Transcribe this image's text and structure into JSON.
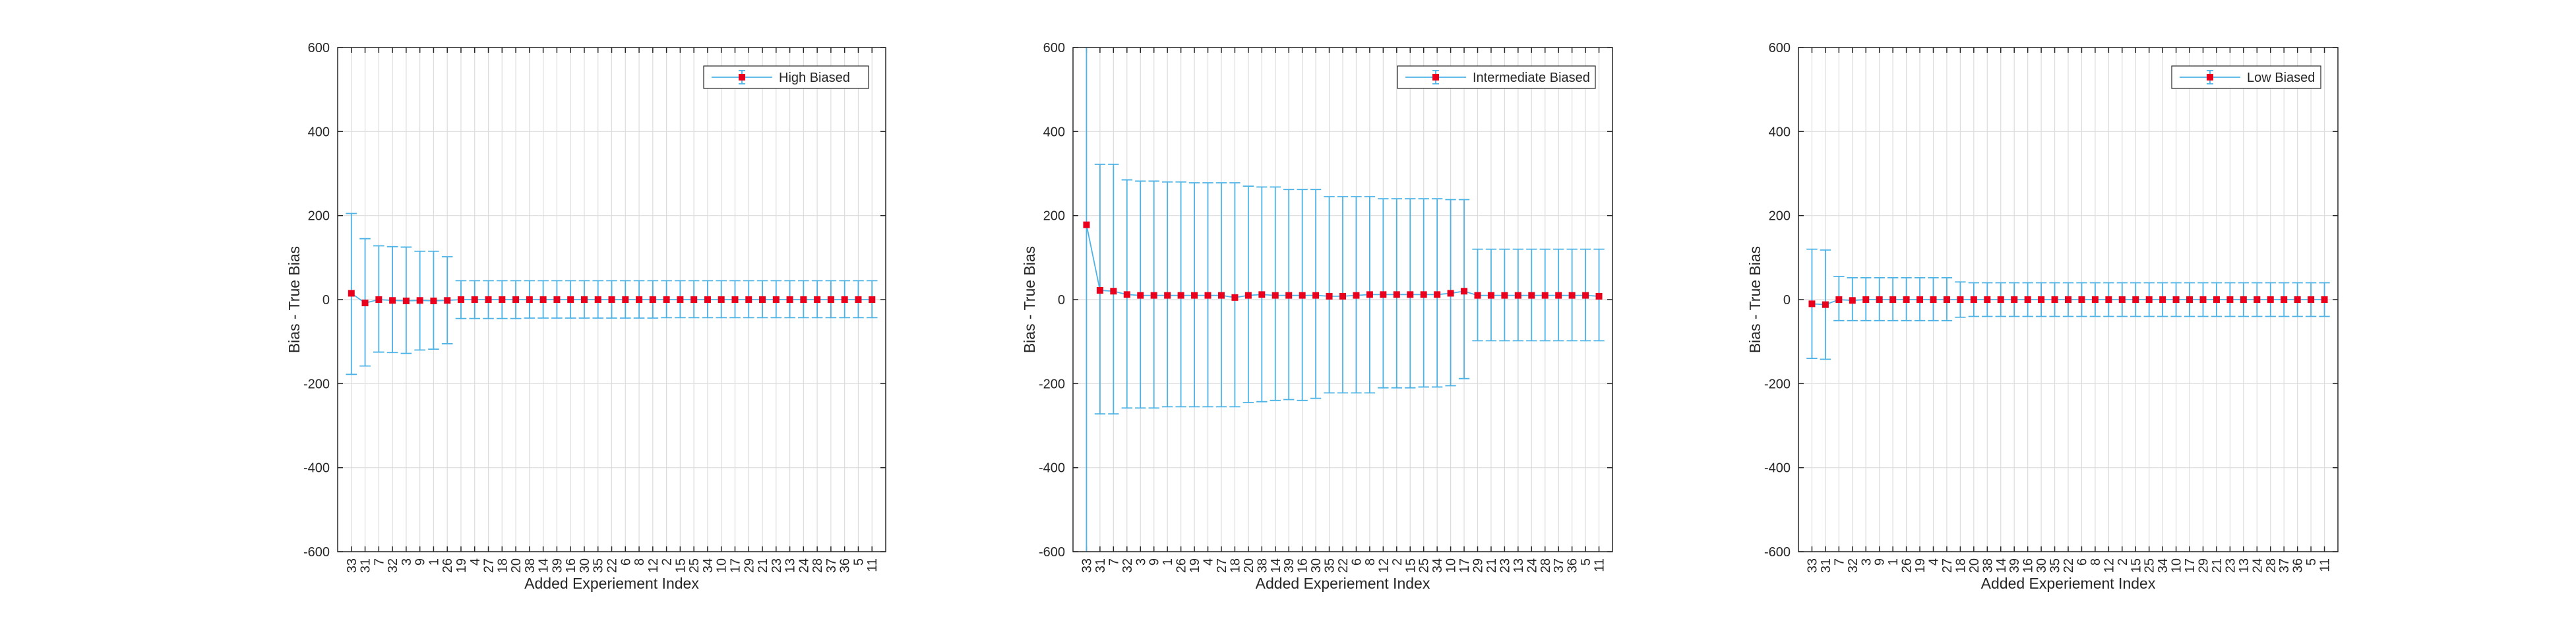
{
  "colors": {
    "errorbar": "#4db3e6",
    "marker": "#e8001c",
    "grid": "#dcdcdc",
    "axis": "#262626",
    "background": "#ffffff"
  },
  "chart_data": [
    {
      "type": "errorbar",
      "xlabel": "Added Experiement Index",
      "ylabel": "Bias - True Bias",
      "ylim": [
        -600,
        600
      ],
      "yticks": [
        -600,
        -400,
        -200,
        0,
        200,
        400,
        600
      ],
      "grid": true,
      "legend_position": "top-right",
      "categories": [
        "33",
        "31",
        "7",
        "32",
        "3",
        "9",
        "1",
        "26",
        "19",
        "4",
        "27",
        "18",
        "20",
        "38",
        "14",
        "39",
        "16",
        "30",
        "35",
        "22",
        "6",
        "8",
        "12",
        "2",
        "15",
        "25",
        "34",
        "10",
        "17",
        "29",
        "21",
        "23",
        "13",
        "24",
        "28",
        "37",
        "36",
        "5",
        "11"
      ],
      "series": [
        {
          "name": "High Biased",
          "values": [
            15,
            -8,
            0,
            -2,
            -3,
            -2,
            -3,
            -2,
            0,
            0,
            0,
            0,
            0,
            0,
            0,
            0,
            0,
            0,
            0,
            0,
            0,
            0,
            0,
            0,
            0,
            0,
            0,
            0,
            0,
            0,
            0,
            0,
            0,
            0,
            0,
            0,
            0,
            0,
            0
          ],
          "lower": [
            -178,
            -158,
            -125,
            -126,
            -128,
            -120,
            -118,
            -105,
            -45,
            -45,
            -45,
            -45,
            -45,
            -44,
            -44,
            -44,
            -44,
            -44,
            -44,
            -44,
            -44,
            -44,
            -44,
            -43,
            -43,
            -43,
            -43,
            -43,
            -43,
            -43,
            -43,
            -43,
            -43,
            -43,
            -43,
            -43,
            -43,
            -43,
            -43
          ],
          "upper": [
            205,
            145,
            128,
            126,
            125,
            115,
            115,
            102,
            45,
            45,
            45,
            45,
            45,
            45,
            45,
            45,
            45,
            45,
            45,
            45,
            45,
            45,
            45,
            45,
            45,
            45,
            45,
            45,
            45,
            45,
            45,
            45,
            45,
            45,
            45,
            45,
            45,
            45,
            45
          ]
        }
      ]
    },
    {
      "type": "errorbar",
      "xlabel": "Added Experiement Index",
      "ylabel": "Bias - True Bias",
      "ylim": [
        -600,
        600
      ],
      "yticks": [
        -600,
        -400,
        -200,
        0,
        200,
        400,
        600
      ],
      "grid": true,
      "legend_position": "top-right",
      "categories": [
        "33",
        "31",
        "7",
        "32",
        "3",
        "9",
        "1",
        "26",
        "19",
        "4",
        "27",
        "18",
        "20",
        "38",
        "14",
        "39",
        "16",
        "30",
        "35",
        "22",
        "6",
        "8",
        "12",
        "2",
        "15",
        "25",
        "34",
        "10",
        "17",
        "29",
        "21",
        "23",
        "13",
        "24",
        "28",
        "37",
        "36",
        "5",
        "11"
      ],
      "series": [
        {
          "name": "Intermediate Biased",
          "values": [
            178,
            22,
            20,
            12,
            10,
            10,
            10,
            10,
            10,
            10,
            10,
            5,
            10,
            12,
            10,
            10,
            10,
            10,
            8,
            8,
            10,
            12,
            12,
            12,
            12,
            12,
            12,
            15,
            20,
            10,
            10,
            10,
            10,
            10,
            10,
            10,
            10,
            10,
            8
          ],
          "lower": [
            -600,
            -272,
            -272,
            -258,
            -258,
            -258,
            -255,
            -255,
            -255,
            -255,
            -255,
            -255,
            -245,
            -243,
            -240,
            -238,
            -240,
            -235,
            -222,
            -222,
            -222,
            -222,
            -210,
            -210,
            -210,
            -208,
            -208,
            -205,
            -188,
            -98,
            -98,
            -98,
            -98,
            -98,
            -98,
            -98,
            -98,
            -98,
            -98
          ],
          "upper": [
            600,
            322,
            322,
            285,
            282,
            282,
            280,
            280,
            278,
            278,
            278,
            278,
            270,
            268,
            268,
            262,
            262,
            262,
            245,
            245,
            245,
            245,
            240,
            240,
            240,
            240,
            240,
            238,
            238,
            120,
            120,
            120,
            120,
            120,
            120,
            120,
            120,
            120,
            120
          ]
        }
      ]
    },
    {
      "type": "errorbar",
      "xlabel": "Added Experiement Index",
      "ylabel": "Bias - True Bias",
      "ylim": [
        -600,
        600
      ],
      "yticks": [
        -600,
        -400,
        -200,
        0,
        200,
        400,
        600
      ],
      "grid": true,
      "legend_position": "top-right",
      "categories": [
        "33",
        "31",
        "7",
        "32",
        "3",
        "9",
        "1",
        "26",
        "19",
        "4",
        "27",
        "18",
        "20",
        "38",
        "14",
        "39",
        "16",
        "30",
        "35",
        "22",
        "6",
        "8",
        "12",
        "2",
        "15",
        "25",
        "34",
        "10",
        "17",
        "29",
        "21",
        "23",
        "13",
        "24",
        "28",
        "37",
        "36",
        "5",
        "11"
      ],
      "series": [
        {
          "name": "Low Biased",
          "values": [
            -10,
            -12,
            0,
            -2,
            0,
            0,
            0,
            0,
            0,
            0,
            0,
            0,
            0,
            0,
            0,
            0,
            0,
            0,
            0,
            0,
            0,
            0,
            0,
            0,
            0,
            0,
            0,
            0,
            0,
            0,
            0,
            0,
            0,
            0,
            0,
            0,
            0,
            0,
            0
          ],
          "lower": [
            -140,
            -142,
            -50,
            -50,
            -50,
            -50,
            -50,
            -50,
            -50,
            -50,
            -50,
            -42,
            -40,
            -40,
            -40,
            -40,
            -40,
            -40,
            -40,
            -40,
            -40,
            -40,
            -40,
            -40,
            -40,
            -40,
            -40,
            -40,
            -40,
            -40,
            -40,
            -40,
            -40,
            -40,
            -40,
            -40,
            -40,
            -40,
            -40
          ],
          "upper": [
            120,
            118,
            55,
            52,
            52,
            52,
            52,
            52,
            52,
            52,
            52,
            42,
            40,
            40,
            40,
            40,
            40,
            40,
            40,
            40,
            40,
            40,
            40,
            40,
            40,
            40,
            40,
            40,
            40,
            40,
            40,
            40,
            40,
            40,
            40,
            40,
            40,
            40,
            40
          ]
        }
      ]
    }
  ]
}
